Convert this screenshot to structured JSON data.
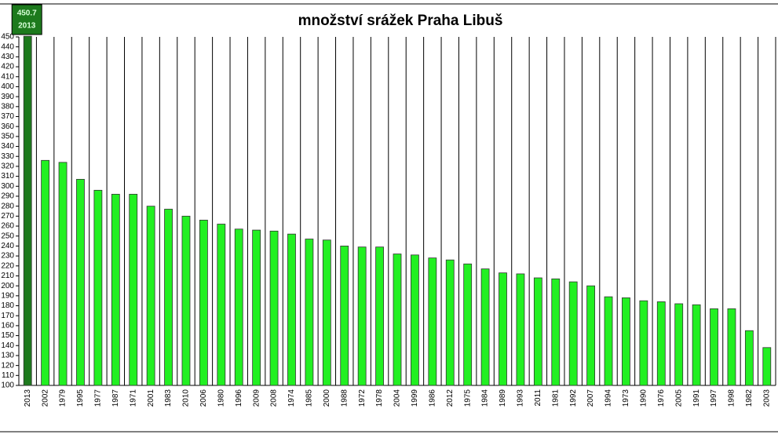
{
  "chart_data": {
    "type": "bar",
    "title": "množství srážek Praha Libuš",
    "categories": [
      "2013",
      "2002",
      "1979",
      "1995",
      "1977",
      "1987",
      "1971",
      "2001",
      "1983",
      "2010",
      "2006",
      "1980",
      "1996",
      "2009",
      "2008",
      "1974",
      "1985",
      "2000",
      "1988",
      "1972",
      "1978",
      "2004",
      "1999",
      "1986",
      "2012",
      "1975",
      "1984",
      "1989",
      "1993",
      "2011",
      "1981",
      "1992",
      "2007",
      "1994",
      "1973",
      "1990",
      "1976",
      "2005",
      "1991",
      "1997",
      "1998",
      "1982",
      "2003"
    ],
    "values": [
      450.7,
      326,
      324,
      307,
      296,
      292,
      292,
      280,
      277,
      270,
      266,
      262,
      257,
      256,
      255,
      252,
      247,
      246,
      240,
      239,
      239,
      232,
      231,
      228,
      226,
      222,
      217,
      213,
      212,
      208,
      207,
      204,
      200,
      189,
      188,
      185,
      184,
      182,
      181,
      177,
      177,
      155,
      138
    ],
    "colors": [
      "#1d7a1d",
      "#22f022",
      "#22f022",
      "#22f022",
      "#22f022",
      "#22f022",
      "#22f022",
      "#22f022",
      "#22f022",
      "#22f022",
      "#22f022",
      "#22f022",
      "#22f022",
      "#22f022",
      "#22f022",
      "#22f022",
      "#22f022",
      "#22f022",
      "#22f022",
      "#22f022",
      "#22f022",
      "#22f022",
      "#22f022",
      "#22f022",
      "#22f022",
      "#22f022",
      "#22f022",
      "#22f022",
      "#22f022",
      "#22f022",
      "#22f022",
      "#22f022",
      "#22f022",
      "#22f022",
      "#22f022",
      "#22f022",
      "#22f022",
      "#22f022",
      "#22f022",
      "#22f022",
      "#22f022",
      "#22f022",
      "#22f022"
    ],
    "ylim": [
      100,
      450
    ],
    "yticks": [
      100,
      110,
      120,
      130,
      140,
      150,
      160,
      170,
      180,
      190,
      200,
      210,
      220,
      230,
      240,
      250,
      260,
      270,
      280,
      290,
      300,
      310,
      320,
      330,
      340,
      350,
      360,
      370,
      380,
      390,
      400,
      410,
      420,
      430,
      440,
      450
    ],
    "grid": "x"
  }
}
